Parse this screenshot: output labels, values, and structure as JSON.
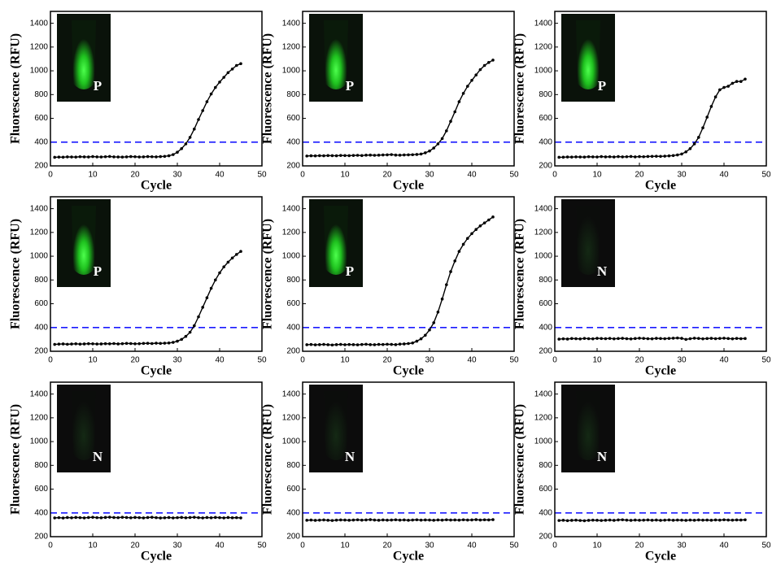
{
  "chart_data": [
    {
      "type": "line",
      "xlabel": "Cycle",
      "ylabel": "Fluorescence (RFU)",
      "xlim": [
        0,
        50
      ],
      "xticks": [
        0,
        10,
        20,
        30,
        40,
        50
      ],
      "ylim": [
        200,
        1500
      ],
      "yticks": [
        200,
        400,
        600,
        800,
        1000,
        1200,
        1400
      ],
      "threshold": 400,
      "threshold_color": "#1a1aff",
      "inset_label": "P",
      "inset_glow": true,
      "x": [
        1,
        2,
        3,
        4,
        5,
        6,
        7,
        8,
        9,
        10,
        11,
        12,
        13,
        14,
        15,
        16,
        17,
        18,
        19,
        20,
        21,
        22,
        23,
        24,
        25,
        26,
        27,
        28,
        29,
        30,
        31,
        32,
        33,
        34,
        35,
        36,
        37,
        38,
        39,
        40,
        41,
        42,
        43,
        44,
        45
      ],
      "series": [
        {
          "color": "#000000",
          "values": [
            272,
            274,
            273,
            276,
            275,
            274,
            277,
            276,
            275,
            278,
            276,
            275,
            277,
            279,
            276,
            275,
            274,
            276,
            278,
            277,
            275,
            276,
            278,
            277,
            276,
            278,
            280,
            285,
            295,
            315,
            345,
            385,
            440,
            510,
            590,
            665,
            740,
            805,
            860,
            905,
            945,
            985,
            1015,
            1045,
            1060
          ]
        }
      ]
    },
    {
      "type": "line",
      "xlabel": "Cycle",
      "ylabel": "Fluorescence (RFU)",
      "xlim": [
        0,
        50
      ],
      "xticks": [
        0,
        10,
        20,
        30,
        40,
        50
      ],
      "ylim": [
        200,
        1500
      ],
      "yticks": [
        200,
        400,
        600,
        800,
        1000,
        1200,
        1400
      ],
      "threshold": 400,
      "threshold_color": "#1a1aff",
      "inset_label": "P",
      "inset_glow": true,
      "x": [
        1,
        2,
        3,
        4,
        5,
        6,
        7,
        8,
        9,
        10,
        11,
        12,
        13,
        14,
        15,
        16,
        17,
        18,
        19,
        20,
        21,
        22,
        23,
        24,
        25,
        26,
        27,
        28,
        29,
        30,
        31,
        32,
        33,
        34,
        35,
        36,
        37,
        38,
        39,
        40,
        41,
        42,
        43,
        44,
        45
      ],
      "series": [
        {
          "color": "#000000",
          "values": [
            283,
            285,
            284,
            286,
            285,
            287,
            286,
            285,
            288,
            287,
            286,
            288,
            289,
            287,
            290,
            291,
            289,
            290,
            292,
            293,
            295,
            291,
            290,
            292,
            293,
            294,
            296,
            300,
            310,
            325,
            350,
            385,
            430,
            495,
            575,
            655,
            740,
            810,
            870,
            920,
            965,
            1010,
            1045,
            1070,
            1090
          ]
        }
      ]
    },
    {
      "type": "line",
      "xlabel": "Cycle",
      "ylabel": "Fluorescence (RFU)",
      "xlim": [
        0,
        50
      ],
      "xticks": [
        0,
        10,
        20,
        30,
        40,
        50
      ],
      "ylim": [
        200,
        1500
      ],
      "yticks": [
        200,
        400,
        600,
        800,
        1000,
        1200,
        1400
      ],
      "threshold": 400,
      "threshold_color": "#1a1aff",
      "inset_label": "P",
      "inset_glow": true,
      "x": [
        1,
        2,
        3,
        4,
        5,
        6,
        7,
        8,
        9,
        10,
        11,
        12,
        13,
        14,
        15,
        16,
        17,
        18,
        19,
        20,
        21,
        22,
        23,
        24,
        25,
        26,
        27,
        28,
        29,
        30,
        31,
        32,
        33,
        34,
        35,
        36,
        37,
        38,
        39,
        40,
        41,
        42,
        43,
        44,
        45
      ],
      "series": [
        {
          "color": "#000000",
          "values": [
            272,
            273,
            275,
            274,
            276,
            275,
            274,
            277,
            276,
            275,
            278,
            276,
            277,
            275,
            278,
            276,
            277,
            279,
            276,
            278,
            277,
            279,
            280,
            281,
            280,
            282,
            284,
            287,
            292,
            300,
            318,
            345,
            385,
            440,
            520,
            610,
            700,
            780,
            840,
            860,
            870,
            895,
            910,
            910,
            930
          ]
        }
      ]
    },
    {
      "type": "line",
      "xlabel": "Cycle",
      "ylabel": "Fluorescence (RFU)",
      "xlim": [
        0,
        50
      ],
      "xticks": [
        0,
        10,
        20,
        30,
        40,
        50
      ],
      "ylim": [
        200,
        1500
      ],
      "yticks": [
        200,
        400,
        600,
        800,
        1000,
        1200,
        1400
      ],
      "threshold": 400,
      "threshold_color": "#1a1aff",
      "inset_label": "P",
      "inset_glow": true,
      "x": [
        1,
        2,
        3,
        4,
        5,
        6,
        7,
        8,
        9,
        10,
        11,
        12,
        13,
        14,
        15,
        16,
        17,
        18,
        19,
        20,
        21,
        22,
        23,
        24,
        25,
        26,
        27,
        28,
        29,
        30,
        31,
        32,
        33,
        34,
        35,
        36,
        37,
        38,
        39,
        40,
        41,
        42,
        43,
        44,
        45
      ],
      "series": [
        {
          "color": "#000000",
          "values": [
            258,
            260,
            262,
            259,
            261,
            263,
            260,
            262,
            264,
            263,
            261,
            262,
            264,
            263,
            265,
            262,
            264,
            266,
            265,
            263,
            264,
            266,
            267,
            265,
            268,
            266,
            268,
            270,
            275,
            285,
            300,
            325,
            360,
            415,
            490,
            570,
            650,
            730,
            800,
            860,
            910,
            950,
            985,
            1015,
            1040
          ]
        }
      ]
    },
    {
      "type": "line",
      "xlabel": "Cycle",
      "ylabel": "Fluorescence (RFU)",
      "xlim": [
        0,
        50
      ],
      "xticks": [
        0,
        10,
        20,
        30,
        40,
        50
      ],
      "ylim": [
        200,
        1500
      ],
      "yticks": [
        200,
        400,
        600,
        800,
        1000,
        1200,
        1400
      ],
      "threshold": 400,
      "threshold_color": "#1a1aff",
      "inset_label": "P",
      "inset_glow": true,
      "x": [
        1,
        2,
        3,
        4,
        5,
        6,
        7,
        8,
        9,
        10,
        11,
        12,
        13,
        14,
        15,
        16,
        17,
        18,
        19,
        20,
        21,
        22,
        23,
        24,
        25,
        26,
        27,
        28,
        29,
        30,
        31,
        32,
        33,
        34,
        35,
        36,
        37,
        38,
        39,
        40,
        41,
        42,
        43,
        44,
        45
      ],
      "series": [
        {
          "color": "#000000",
          "values": [
            255,
            257,
            254,
            256,
            258,
            255,
            253,
            256,
            258,
            255,
            257,
            256,
            254,
            257,
            259,
            256,
            255,
            258,
            257,
            259,
            258,
            256,
            260,
            262,
            265,
            270,
            285,
            305,
            335,
            380,
            440,
            530,
            640,
            760,
            870,
            960,
            1040,
            1100,
            1150,
            1190,
            1225,
            1255,
            1280,
            1305,
            1330
          ]
        }
      ]
    },
    {
      "type": "line",
      "xlabel": "Cycle",
      "ylabel": "Fluorescence (RFU)",
      "xlim": [
        0,
        50
      ],
      "xticks": [
        0,
        10,
        20,
        30,
        40,
        50
      ],
      "ylim": [
        200,
        1500
      ],
      "yticks": [
        200,
        400,
        600,
        800,
        1000,
        1200,
        1400
      ],
      "threshold": 400,
      "threshold_color": "#1a1aff",
      "inset_label": "N",
      "inset_glow": false,
      "x": [
        1,
        2,
        3,
        4,
        5,
        6,
        7,
        8,
        9,
        10,
        11,
        12,
        13,
        14,
        15,
        16,
        17,
        18,
        19,
        20,
        21,
        22,
        23,
        24,
        25,
        26,
        27,
        28,
        29,
        30,
        31,
        32,
        33,
        34,
        35,
        36,
        37,
        38,
        39,
        40,
        41,
        42,
        43,
        44,
        45
      ],
      "series": [
        {
          "color": "#000000",
          "values": [
            302,
            305,
            303,
            307,
            306,
            304,
            308,
            306,
            305,
            309,
            307,
            306,
            308,
            305,
            307,
            309,
            306,
            304,
            307,
            310,
            308,
            306,
            305,
            309,
            307,
            306,
            308,
            310,
            312,
            309,
            300,
            306,
            310,
            308,
            305,
            307,
            309,
            306,
            308,
            310,
            307,
            305,
            308,
            306,
            307
          ]
        }
      ]
    },
    {
      "type": "line",
      "xlabel": "Cycle",
      "ylabel": "Fluorescence (RFU)",
      "xlim": [
        0,
        50
      ],
      "xticks": [
        0,
        10,
        20,
        30,
        40,
        50
      ],
      "ylim": [
        200,
        1500
      ],
      "yticks": [
        200,
        400,
        600,
        800,
        1000,
        1200,
        1400
      ],
      "threshold": 400,
      "threshold_color": "#1a1aff",
      "inset_label": "N",
      "inset_glow": false,
      "x": [
        1,
        2,
        3,
        4,
        5,
        6,
        7,
        8,
        9,
        10,
        11,
        12,
        13,
        14,
        15,
        16,
        17,
        18,
        19,
        20,
        21,
        22,
        23,
        24,
        25,
        26,
        27,
        28,
        29,
        30,
        31,
        32,
        33,
        34,
        35,
        36,
        37,
        38,
        39,
        40,
        41,
        42,
        43,
        44,
        45
      ],
      "series": [
        {
          "color": "#000000",
          "values": [
            358,
            360,
            357,
            361,
            359,
            362,
            360,
            358,
            361,
            363,
            360,
            359,
            362,
            364,
            361,
            360,
            363,
            361,
            359,
            362,
            360,
            358,
            361,
            363,
            360,
            357,
            359,
            361,
            358,
            360,
            362,
            359,
            361,
            363,
            360,
            358,
            361,
            359,
            362,
            360,
            358,
            361,
            359,
            360,
            358
          ]
        }
      ]
    },
    {
      "type": "line",
      "xlabel": "Cycle",
      "ylabel": "Fluorescence (RFU)",
      "xlim": [
        0,
        50
      ],
      "xticks": [
        0,
        10,
        20,
        30,
        40,
        50
      ],
      "ylim": [
        200,
        1500
      ],
      "yticks": [
        200,
        400,
        600,
        800,
        1000,
        1200,
        1400
      ],
      "threshold": 400,
      "threshold_color": "#1a1aff",
      "inset_label": "N",
      "inset_glow": false,
      "x": [
        1,
        2,
        3,
        4,
        5,
        6,
        7,
        8,
        9,
        10,
        11,
        12,
        13,
        14,
        15,
        16,
        17,
        18,
        19,
        20,
        21,
        22,
        23,
        24,
        25,
        26,
        27,
        28,
        29,
        30,
        31,
        32,
        33,
        34,
        35,
        36,
        37,
        38,
        39,
        40,
        41,
        42,
        43,
        44,
        45
      ],
      "series": [
        {
          "color": "#000000",
          "values": [
            338,
            340,
            337,
            339,
            341,
            338,
            336,
            339,
            341,
            340,
            338,
            340,
            342,
            339,
            341,
            343,
            340,
            338,
            341,
            339,
            340,
            342,
            339,
            341,
            338,
            340,
            342,
            339,
            341,
            340,
            338,
            341,
            339,
            342,
            340,
            341,
            339,
            342,
            340,
            341,
            343,
            340,
            342,
            341,
            343
          ]
        }
      ]
    },
    {
      "type": "line",
      "xlabel": "Cycle",
      "ylabel": "Fluorescence (RFU)",
      "xlim": [
        0,
        50
      ],
      "xticks": [
        0,
        10,
        20,
        30,
        40,
        50
      ],
      "ylim": [
        200,
        1500
      ],
      "yticks": [
        200,
        400,
        600,
        800,
        1000,
        1200,
        1400
      ],
      "threshold": 400,
      "threshold_color": "#1a1aff",
      "inset_label": "N",
      "inset_glow": false,
      "x": [
        1,
        2,
        3,
        4,
        5,
        6,
        7,
        8,
        9,
        10,
        11,
        12,
        13,
        14,
        15,
        16,
        17,
        18,
        19,
        20,
        21,
        22,
        23,
        24,
        25,
        26,
        27,
        28,
        29,
        30,
        31,
        32,
        33,
        34,
        35,
        36,
        37,
        38,
        39,
        40,
        41,
        42,
        43,
        44,
        45
      ],
      "series": [
        {
          "color": "#000000",
          "values": [
            336,
            338,
            335,
            337,
            339,
            336,
            334,
            337,
            339,
            338,
            336,
            338,
            340,
            337,
            341,
            342,
            339,
            337,
            340,
            338,
            339,
            341,
            338,
            340,
            337,
            339,
            341,
            338,
            340,
            339,
            337,
            340,
            338,
            341,
            339,
            340,
            338,
            341,
            339,
            342,
            340,
            339,
            341,
            340,
            342
          ]
        }
      ]
    }
  ]
}
